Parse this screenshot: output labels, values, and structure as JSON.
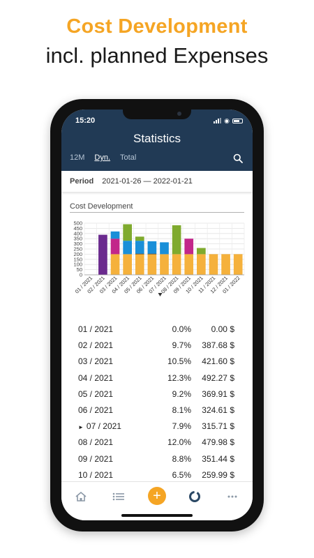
{
  "promo": {
    "title": "Cost Development",
    "subtitle": "incl. planned Expenses"
  },
  "status_bar": {
    "time": "15:20"
  },
  "header": {
    "title": "Statistics",
    "tabs": [
      {
        "label": "12M"
      },
      {
        "label": "Dyn."
      },
      {
        "label": "Total"
      }
    ],
    "search_icon": "search-icon"
  },
  "period": {
    "label": "Period",
    "value": "2021-01-26 — 2022-01-21"
  },
  "chart": {
    "title": "Cost Development"
  },
  "chart_data": {
    "type": "bar",
    "stacked": true,
    "ylim": [
      0,
      500
    ],
    "yticks": [
      "0",
      "50",
      "100",
      "150",
      "200",
      "250",
      "300",
      "350",
      "400",
      "450",
      "500"
    ],
    "categories": [
      "01 / 2021",
      "02 / 2021",
      "03 / 2021",
      "04 / 2021",
      "05 / 2021",
      "06 / 2021",
      "07 / 2021",
      "08 / 2021",
      "09 / 2021",
      "10 / 2021",
      "11 / 2021",
      "12 / 2021",
      "01 / 2022"
    ],
    "current_index": 6,
    "series": [
      {
        "color": "#f5b13c",
        "values": [
          0,
          0,
          200,
          200,
          200,
          200,
          200,
          200,
          200,
          200,
          200,
          200,
          200
        ]
      },
      {
        "color": "#1a1a1a",
        "values": [
          0,
          0,
          0,
          0,
          5,
          5,
          0,
          0,
          0,
          0,
          0,
          0,
          0
        ]
      },
      {
        "color": "#c2268a",
        "values": [
          0,
          0,
          150,
          0,
          0,
          0,
          0,
          0,
          150,
          0,
          0,
          0,
          0
        ]
      },
      {
        "color": "#1a8fd8",
        "values": [
          0,
          0,
          70,
          130,
          125,
          120,
          115,
          0,
          0,
          0,
          0,
          0,
          0
        ]
      },
      {
        "color": "#7faa2e",
        "values": [
          0,
          0,
          0,
          160,
          40,
          0,
          0,
          280,
          0,
          60,
          0,
          0,
          0
        ]
      },
      {
        "color": "#6a2a8e",
        "values": [
          0,
          388,
          0,
          0,
          0,
          0,
          0,
          0,
          0,
          0,
          0,
          0,
          0
        ]
      }
    ]
  },
  "table": {
    "rows": [
      {
        "month": "01 / 2021",
        "percent": "0.0%",
        "value": "0.00 $"
      },
      {
        "month": "02 / 2021",
        "percent": "9.7%",
        "value": "387.68 $"
      },
      {
        "month": "03 / 2021",
        "percent": "10.5%",
        "value": "421.60 $"
      },
      {
        "month": "04 / 2021",
        "percent": "12.3%",
        "value": "492.27 $"
      },
      {
        "month": "05 / 2021",
        "percent": "9.2%",
        "value": "369.91 $"
      },
      {
        "month": "06 / 2021",
        "percent": "8.1%",
        "value": "324.61 $"
      },
      {
        "month": "07 / 2021",
        "percent": "7.9%",
        "value": "315.71 $",
        "current": true
      },
      {
        "month": "08 / 2021",
        "percent": "12.0%",
        "value": "479.98 $"
      },
      {
        "month": "09 / 2021",
        "percent": "8.8%",
        "value": "351.44 $"
      },
      {
        "month": "10 / 2021",
        "percent": "6.5%",
        "value": "259.99 $"
      }
    ]
  },
  "bottom_nav": {
    "items": [
      "home-icon",
      "list-icon",
      "add-icon",
      "statistics-icon",
      "more-icon"
    ],
    "add_symbol": "+",
    "accent": "#f5a524"
  },
  "colors": {
    "header_bg": "#213a55",
    "accent": "#f5a524"
  }
}
